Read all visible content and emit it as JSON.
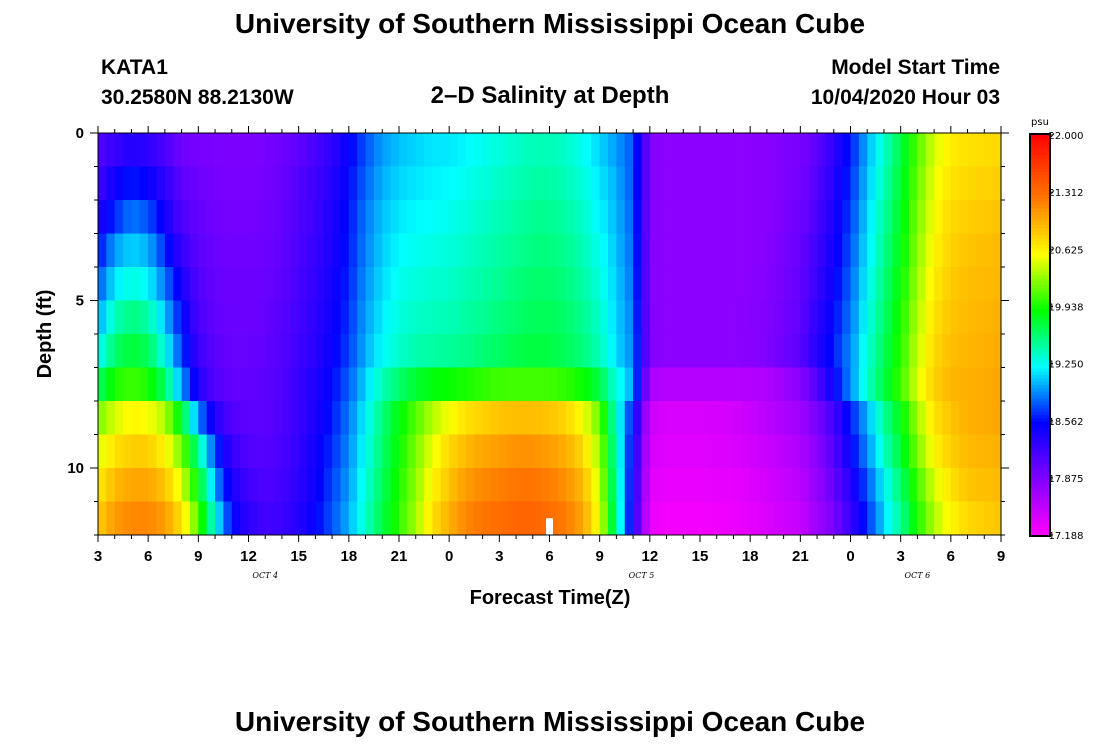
{
  "header": {
    "title_top": "University of Southern Mississippi Ocean Cube",
    "title_bottom": "University of Southern Mississippi Ocean Cube",
    "station": "KATA1",
    "coords": "30.2580N 88.2130W",
    "subtitle": "2–D Salinity at Depth",
    "model_label": "Model Start Time",
    "model_time": "10/04/2020 Hour 03"
  },
  "chart_data": {
    "type": "heatmap",
    "title": "2–D Salinity at Depth",
    "xlabel": "Forecast Time(Z)",
    "ylabel": "Depth (ft)",
    "x_hours_range": [
      0,
      54
    ],
    "x_ticks": [
      {
        "hour": 0,
        "label": "3"
      },
      {
        "hour": 3,
        "label": "6"
      },
      {
        "hour": 6,
        "label": "9"
      },
      {
        "hour": 9,
        "label": "12"
      },
      {
        "hour": 12,
        "label": "15"
      },
      {
        "hour": 15,
        "label": "18"
      },
      {
        "hour": 18,
        "label": "21"
      },
      {
        "hour": 21,
        "label": "0"
      },
      {
        "hour": 24,
        "label": "3"
      },
      {
        "hour": 27,
        "label": "6"
      },
      {
        "hour": 30,
        "label": "9"
      },
      {
        "hour": 33,
        "label": "12"
      },
      {
        "hour": 36,
        "label": "15"
      },
      {
        "hour": 39,
        "label": "18"
      },
      {
        "hour": 42,
        "label": "21"
      },
      {
        "hour": 45,
        "label": "0"
      },
      {
        "hour": 48,
        "label": "3"
      },
      {
        "hour": 51,
        "label": "6"
      },
      {
        "hour": 54,
        "label": "9"
      }
    ],
    "date_labels": [
      {
        "hour": 10,
        "label": "OCT 4"
      },
      {
        "hour": 32.5,
        "label": "OCT 5"
      },
      {
        "hour": 49,
        "label": "OCT 6"
      }
    ],
    "ylim": [
      0,
      12
    ],
    "y_ticks": [
      0,
      5,
      10
    ],
    "depth_rows_ft": [
      0,
      1,
      2,
      3,
      4,
      5,
      6,
      7,
      8,
      9,
      10,
      11
    ],
    "time_breakpoints": [
      0,
      1,
      2,
      3,
      4,
      5,
      6,
      7,
      8,
      9,
      10,
      11,
      12,
      13,
      14,
      15,
      16,
      17,
      18,
      19,
      20,
      21,
      22,
      23,
      24,
      25,
      26,
      27,
      28,
      29,
      30,
      31,
      32,
      33,
      34,
      36,
      38,
      40,
      42,
      43,
      44,
      45,
      46,
      47,
      48,
      49,
      50,
      51,
      52,
      54
    ],
    "salinity_psu": [
      [
        18.1,
        18.25,
        18.35,
        18.3,
        18.15,
        17.95,
        17.9,
        17.9,
        17.88,
        17.88,
        17.9,
        17.95,
        18.05,
        18.15,
        18.3,
        18.5,
        18.75,
        18.95,
        19.05,
        19.1,
        19.15,
        19.15,
        19.2,
        19.25,
        19.3,
        19.35,
        19.4,
        19.4,
        19.35,
        19.25,
        19.1,
        18.95,
        18.75,
        17.85,
        17.8,
        17.8,
        17.8,
        17.82,
        17.9,
        18.05,
        18.3,
        18.6,
        19.0,
        19.35,
        19.7,
        20.1,
        20.45,
        20.65,
        20.7,
        20.75
      ],
      [
        18.2,
        18.45,
        18.6,
        18.5,
        18.3,
        18.05,
        17.95,
        17.92,
        17.9,
        17.9,
        17.92,
        17.98,
        18.1,
        18.2,
        18.35,
        18.55,
        18.8,
        19.0,
        19.1,
        19.15,
        19.18,
        19.2,
        19.25,
        19.3,
        19.35,
        19.4,
        19.45,
        19.45,
        19.4,
        19.3,
        19.15,
        19.0,
        18.75,
        17.85,
        17.8,
        17.8,
        17.8,
        17.82,
        17.92,
        18.1,
        18.35,
        18.65,
        19.05,
        19.4,
        19.75,
        20.15,
        20.5,
        20.7,
        20.75,
        20.8
      ],
      [
        18.35,
        18.65,
        18.85,
        18.75,
        18.45,
        18.12,
        18.0,
        17.95,
        17.92,
        17.92,
        17.94,
        18.0,
        18.12,
        18.22,
        18.38,
        18.58,
        18.85,
        19.05,
        19.15,
        19.2,
        19.22,
        19.25,
        19.3,
        19.35,
        19.4,
        19.45,
        19.5,
        19.5,
        19.45,
        19.35,
        19.2,
        19.02,
        18.78,
        17.85,
        17.8,
        17.8,
        17.8,
        17.82,
        17.95,
        18.15,
        18.4,
        18.7,
        19.1,
        19.45,
        19.8,
        20.2,
        20.55,
        20.75,
        20.8,
        20.85
      ],
      [
        18.55,
        18.95,
        19.1,
        19.0,
        18.65,
        18.25,
        18.05,
        17.98,
        17.95,
        17.95,
        17.96,
        18.02,
        18.14,
        18.25,
        18.4,
        18.6,
        18.88,
        19.08,
        19.2,
        19.25,
        19.27,
        19.3,
        19.35,
        19.4,
        19.45,
        19.5,
        19.55,
        19.55,
        19.5,
        19.4,
        19.25,
        19.05,
        18.8,
        17.85,
        17.8,
        17.8,
        17.8,
        17.83,
        17.98,
        18.2,
        18.45,
        18.75,
        19.15,
        19.5,
        19.85,
        20.25,
        20.6,
        20.78,
        20.85,
        20.9
      ],
      [
        18.75,
        19.15,
        19.3,
        19.2,
        18.85,
        18.4,
        18.1,
        18.0,
        17.97,
        17.97,
        17.98,
        18.05,
        18.16,
        18.28,
        18.43,
        18.63,
        18.92,
        19.12,
        19.25,
        19.3,
        19.33,
        19.35,
        19.4,
        19.45,
        19.5,
        19.55,
        19.6,
        19.6,
        19.55,
        19.45,
        19.3,
        19.08,
        18.82,
        17.85,
        17.8,
        17.8,
        17.8,
        17.84,
        18.0,
        18.25,
        18.5,
        18.8,
        19.2,
        19.55,
        19.9,
        20.3,
        20.65,
        20.82,
        20.88,
        20.92
      ],
      [
        18.95,
        19.4,
        19.55,
        19.45,
        19.05,
        18.55,
        18.15,
        18.02,
        17.98,
        17.98,
        18.0,
        18.08,
        18.18,
        18.3,
        18.46,
        18.66,
        18.96,
        19.16,
        19.3,
        19.35,
        19.38,
        19.4,
        19.45,
        19.5,
        19.55,
        19.6,
        19.65,
        19.65,
        19.6,
        19.5,
        19.35,
        19.1,
        18.85,
        17.85,
        17.8,
        17.8,
        17.8,
        17.85,
        18.02,
        18.3,
        18.55,
        18.85,
        19.25,
        19.6,
        19.95,
        20.35,
        20.7,
        20.85,
        20.9,
        20.95
      ],
      [
        19.2,
        19.6,
        19.75,
        19.65,
        19.25,
        18.7,
        18.22,
        18.05,
        18.0,
        18.0,
        18.02,
        18.1,
        18.2,
        18.33,
        18.5,
        18.7,
        19.0,
        19.22,
        19.35,
        19.42,
        19.45,
        19.48,
        19.52,
        19.58,
        19.62,
        19.68,
        19.72,
        19.7,
        19.65,
        19.55,
        19.4,
        19.12,
        18.88,
        17.85,
        17.8,
        17.8,
        17.8,
        17.86,
        18.05,
        18.35,
        18.6,
        18.9,
        19.3,
        19.65,
        20.0,
        20.4,
        20.75,
        20.88,
        20.92,
        20.98
      ],
      [
        19.6,
        19.95,
        20.05,
        19.95,
        19.6,
        18.95,
        18.35,
        18.1,
        18.02,
        18.02,
        18.04,
        18.12,
        18.25,
        18.38,
        18.55,
        18.78,
        19.1,
        19.4,
        19.6,
        19.75,
        19.85,
        19.9,
        19.95,
        20.0,
        20.05,
        20.05,
        20.05,
        20.05,
        20.0,
        19.9,
        19.7,
        19.3,
        18.95,
        17.62,
        17.58,
        17.58,
        17.58,
        17.62,
        17.8,
        18.1,
        18.5,
        18.9,
        19.35,
        19.7,
        20.05,
        20.45,
        20.8,
        20.92,
        20.95,
        21.0
      ],
      [
        20.2,
        20.45,
        20.6,
        20.55,
        20.35,
        19.8,
        18.9,
        18.35,
        18.1,
        18.05,
        18.05,
        18.12,
        18.25,
        18.4,
        18.6,
        18.85,
        19.2,
        19.55,
        19.85,
        20.1,
        20.35,
        20.55,
        20.7,
        20.78,
        20.85,
        20.88,
        20.88,
        20.85,
        20.75,
        20.55,
        20.15,
        19.35,
        18.55,
        17.45,
        17.4,
        17.4,
        17.42,
        17.55,
        17.7,
        17.9,
        18.2,
        18.6,
        19.0,
        19.45,
        19.85,
        20.3,
        20.7,
        20.85,
        20.95,
        21.0
      ],
      [
        20.45,
        20.7,
        20.8,
        20.8,
        20.6,
        20.2,
        19.5,
        18.7,
        18.25,
        18.1,
        18.08,
        18.14,
        18.28,
        18.45,
        18.65,
        18.9,
        19.25,
        19.6,
        19.9,
        20.2,
        20.5,
        20.75,
        20.9,
        21.0,
        21.05,
        21.1,
        21.1,
        21.05,
        20.95,
        20.75,
        20.3,
        19.4,
        18.45,
        17.4,
        17.35,
        17.35,
        17.38,
        17.48,
        17.62,
        17.8,
        18.1,
        18.5,
        18.9,
        19.35,
        19.75,
        20.2,
        20.6,
        20.8,
        20.9,
        20.95
      ],
      [
        20.65,
        20.9,
        21.0,
        21.0,
        20.85,
        20.45,
        19.85,
        18.95,
        18.4,
        18.2,
        18.12,
        18.18,
        18.3,
        18.48,
        18.7,
        18.95,
        19.3,
        19.65,
        19.95,
        20.25,
        20.6,
        20.85,
        21.05,
        21.15,
        21.2,
        21.25,
        21.25,
        21.2,
        21.1,
        20.9,
        20.4,
        19.45,
        18.4,
        17.35,
        17.3,
        17.3,
        17.32,
        17.42,
        17.55,
        17.75,
        18.0,
        18.35,
        18.75,
        19.2,
        19.6,
        20.05,
        20.45,
        20.7,
        20.85,
        20.9
      ],
      [
        20.8,
        21.05,
        21.15,
        21.15,
        21.05,
        20.7,
        20.1,
        19.25,
        18.55,
        18.3,
        18.18,
        18.22,
        18.35,
        18.52,
        18.75,
        19.0,
        19.35,
        19.7,
        20.0,
        20.3,
        20.7,
        20.95,
        21.15,
        21.25,
        21.3,
        21.35,
        21.35,
        21.3,
        21.2,
        21.0,
        20.5,
        19.5,
        18.35,
        17.3,
        17.25,
        17.25,
        17.28,
        17.38,
        17.5,
        17.7,
        17.9,
        18.25,
        18.65,
        19.1,
        19.5,
        19.95,
        20.35,
        20.6,
        20.75,
        20.85
      ]
    ],
    "missing_cell": {
      "time_hour": 27,
      "depth_ft": 11
    },
    "colorbar": {
      "unit": "psu",
      "min": 17.188,
      "max": 22.0,
      "tick_labels": [
        "22.000",
        "21.312",
        "20.625",
        "19.938",
        "19.250",
        "18.562",
        "17.875",
        "17.188"
      ],
      "tick_values": [
        22.0,
        21.312,
        20.625,
        19.938,
        19.25,
        18.562,
        17.875,
        17.188
      ]
    }
  }
}
